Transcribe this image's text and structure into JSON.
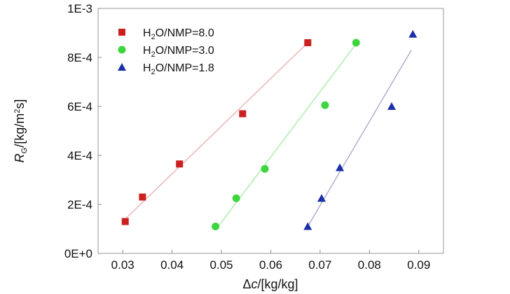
{
  "chart_data": {
    "type": "scatter",
    "xlabel": "Δc/[kg/kg]",
    "ylabel": "RG/[kg/m²s]",
    "xlim": [
      0.025,
      0.095
    ],
    "ylim": [
      0,
      0.001
    ],
    "x_ticks": [
      0.03,
      0.04,
      0.05,
      0.06,
      0.07,
      0.08,
      0.09
    ],
    "x_tick_labels": [
      "0.03",
      "0.04",
      "0.05",
      "0.06",
      "0.07",
      "0.08",
      "0.09"
    ],
    "y_ticks": [
      0,
      0.0002,
      0.0004,
      0.0006,
      0.0008,
      0.001
    ],
    "y_tick_labels": [
      "0E+0",
      "2E-4",
      "4E-4",
      "6E-4",
      "8E-4",
      "1E-3"
    ],
    "legend_position": "top-left",
    "grid": false,
    "series": [
      {
        "name": "H2O/NMP=8.0",
        "marker": "square",
        "color": "#cc1f1f",
        "line_color": "#eab1b1",
        "points": [
          {
            "x": 0.0305,
            "y": 0.00013
          },
          {
            "x": 0.034,
            "y": 0.00023
          },
          {
            "x": 0.0415,
            "y": 0.000365
          },
          {
            "x": 0.0543,
            "y": 0.00057
          },
          {
            "x": 0.0675,
            "y": 0.00086
          }
        ],
        "fit": [
          {
            "x": 0.0305,
            "y": 0.00014
          },
          {
            "x": 0.0675,
            "y": 0.00086
          }
        ]
      },
      {
        "name": "H2O/NMP=3.0",
        "marker": "circle",
        "color": "#3ed63e",
        "line_color": "#a6eca6",
        "points": [
          {
            "x": 0.0488,
            "y": 0.00011
          },
          {
            "x": 0.053,
            "y": 0.000225
          },
          {
            "x": 0.0588,
            "y": 0.000345
          },
          {
            "x": 0.071,
            "y": 0.000605
          },
          {
            "x": 0.0773,
            "y": 0.00086
          }
        ],
        "fit": [
          {
            "x": 0.0488,
            "y": 9.5e-05
          },
          {
            "x": 0.0773,
            "y": 0.000855
          }
        ]
      },
      {
        "name": "H2O/NMP=1.8",
        "marker": "triangle",
        "color": "#1a2fa8",
        "line_color": "#aaaacc",
        "points": [
          {
            "x": 0.0675,
            "y": 0.00011
          },
          {
            "x": 0.0703,
            "y": 0.000225
          },
          {
            "x": 0.074,
            "y": 0.00035
          },
          {
            "x": 0.0845,
            "y": 0.0006
          },
          {
            "x": 0.0888,
            "y": 0.000895
          }
        ],
        "fit": [
          {
            "x": 0.0675,
            "y": 0.00011
          },
          {
            "x": 0.0885,
            "y": 0.00083
          }
        ]
      }
    ]
  }
}
